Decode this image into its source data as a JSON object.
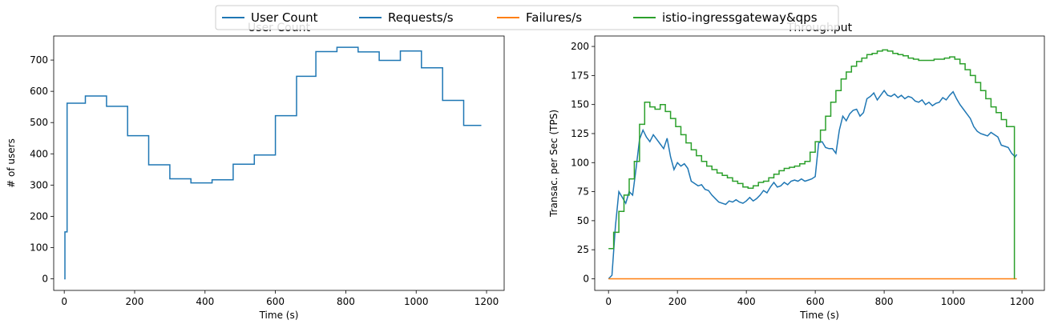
{
  "legend": {
    "entries": [
      {
        "label": "User Count",
        "color": "#1f77b4"
      },
      {
        "label": "Requests/s",
        "color": "#1f77b4"
      },
      {
        "label": "Failures/s",
        "color": "#ff7f0e"
      },
      {
        "label": "istio-ingressgateway&qps",
        "color": "#2ca02c"
      }
    ],
    "placement": "top-center"
  },
  "chart_data": [
    {
      "type": "line",
      "title": "User Count",
      "xlabel": "Time (s)",
      "ylabel": "# of users",
      "xlim": [
        -30,
        1250
      ],
      "ylim": [
        -37,
        777
      ],
      "xticks": [
        0,
        200,
        400,
        600,
        800,
        1000,
        1200
      ],
      "yticks": [
        0,
        100,
        200,
        300,
        400,
        500,
        600,
        700
      ],
      "grid": false,
      "series": [
        {
          "name": "User Count",
          "color": "#1f77b4",
          "step": true,
          "points": [
            [
              0,
              0
            ],
            [
              2,
              150
            ],
            [
              8,
              562
            ],
            [
              60,
              562
            ],
            [
              60,
              585
            ],
            [
              120,
              585
            ],
            [
              120,
              552
            ],
            [
              180,
              552
            ],
            [
              180,
              458
            ],
            [
              240,
              458
            ],
            [
              240,
              365
            ],
            [
              300,
              365
            ],
            [
              300,
              320
            ],
            [
              360,
              320
            ],
            [
              360,
              307
            ],
            [
              420,
              307
            ],
            [
              420,
              317
            ],
            [
              480,
              317
            ],
            [
              480,
              367
            ],
            [
              540,
              367
            ],
            [
              540,
              396
            ],
            [
              600,
              396
            ],
            [
              600,
              522
            ],
            [
              660,
              522
            ],
            [
              660,
              648
            ],
            [
              715,
              648
            ],
            [
              715,
              727
            ],
            [
              775,
              727
            ],
            [
              775,
              741
            ],
            [
              835,
              741
            ],
            [
              835,
              726
            ],
            [
              895,
              726
            ],
            [
              895,
              699
            ],
            [
              955,
              699
            ],
            [
              955,
              729
            ],
            [
              1015,
              729
            ],
            [
              1015,
              675
            ],
            [
              1075,
              675
            ],
            [
              1075,
              571
            ],
            [
              1135,
              571
            ],
            [
              1135,
              491
            ],
            [
              1185,
              491
            ]
          ]
        }
      ]
    },
    {
      "type": "line",
      "title": "Throughput",
      "xlabel": "Time (s)",
      "ylabel": "Transac. per Sec (TPS)",
      "xlim": [
        -40,
        1265
      ],
      "ylim": [
        -10,
        209
      ],
      "xticks": [
        0,
        200,
        400,
        600,
        800,
        1000,
        1200
      ],
      "yticks": [
        0,
        25,
        50,
        75,
        100,
        125,
        150,
        175,
        200
      ],
      "grid": false,
      "series": [
        {
          "name": "Requests/s",
          "color": "#1f77b4",
          "points": [
            [
              0,
              0
            ],
            [
              10,
              3
            ],
            [
              20,
              45
            ],
            [
              30,
              75
            ],
            [
              40,
              70
            ],
            [
              50,
              65
            ],
            [
              60,
              75
            ],
            [
              70,
              72
            ],
            [
              80,
              95
            ],
            [
              90,
              120
            ],
            [
              100,
              128
            ],
            [
              110,
              122
            ],
            [
              120,
              118
            ],
            [
              130,
              124
            ],
            [
              140,
              120
            ],
            [
              150,
              116
            ],
            [
              160,
              112
            ],
            [
              170,
              121
            ],
            [
              180,
              105
            ],
            [
              190,
              94
            ],
            [
              200,
              100
            ],
            [
              210,
              97
            ],
            [
              220,
              99
            ],
            [
              230,
              95
            ],
            [
              240,
              84
            ],
            [
              250,
              82
            ],
            [
              260,
              80
            ],
            [
              270,
              81
            ],
            [
              280,
              77
            ],
            [
              290,
              76
            ],
            [
              300,
              72
            ],
            [
              310,
              69
            ],
            [
              320,
              66
            ],
            [
              330,
              65
            ],
            [
              340,
              64
            ],
            [
              350,
              67
            ],
            [
              360,
              66
            ],
            [
              370,
              68
            ],
            [
              380,
              66
            ],
            [
              390,
              65
            ],
            [
              400,
              67
            ],
            [
              410,
              70
            ],
            [
              420,
              67
            ],
            [
              430,
              69
            ],
            [
              440,
              72
            ],
            [
              450,
              76
            ],
            [
              460,
              74
            ],
            [
              470,
              79
            ],
            [
              480,
              83
            ],
            [
              490,
              79
            ],
            [
              500,
              80
            ],
            [
              510,
              83
            ],
            [
              520,
              81
            ],
            [
              530,
              84
            ],
            [
              540,
              85
            ],
            [
              550,
              84
            ],
            [
              560,
              86
            ],
            [
              570,
              84
            ],
            [
              580,
              85
            ],
            [
              590,
              86
            ],
            [
              600,
              88
            ],
            [
              610,
              117
            ],
            [
              620,
              118
            ],
            [
              630,
              113
            ],
            [
              640,
              112
            ],
            [
              650,
              112
            ],
            [
              660,
              108
            ],
            [
              670,
              128
            ],
            [
              680,
              140
            ],
            [
              690,
              136
            ],
            [
              700,
              142
            ],
            [
              710,
              145
            ],
            [
              720,
              146
            ],
            [
              730,
              140
            ],
            [
              740,
              143
            ],
            [
              750,
              155
            ],
            [
              760,
              157
            ],
            [
              770,
              160
            ],
            [
              780,
              154
            ],
            [
              790,
              158
            ],
            [
              800,
              162
            ],
            [
              810,
              158
            ],
            [
              820,
              157
            ],
            [
              830,
              159
            ],
            [
              840,
              156
            ],
            [
              850,
              158
            ],
            [
              860,
              155
            ],
            [
              870,
              157
            ],
            [
              880,
              156
            ],
            [
              890,
              153
            ],
            [
              900,
              152
            ],
            [
              910,
              154
            ],
            [
              920,
              150
            ],
            [
              930,
              152
            ],
            [
              940,
              149
            ],
            [
              950,
              151
            ],
            [
              960,
              152
            ],
            [
              970,
              156
            ],
            [
              980,
              154
            ],
            [
              990,
              158
            ],
            [
              1000,
              161
            ],
            [
              1010,
              155
            ],
            [
              1020,
              150
            ],
            [
              1030,
              146
            ],
            [
              1040,
              142
            ],
            [
              1050,
              138
            ],
            [
              1060,
              131
            ],
            [
              1070,
              127
            ],
            [
              1080,
              125
            ],
            [
              1090,
              124
            ],
            [
              1100,
              123
            ],
            [
              1110,
              126
            ],
            [
              1120,
              124
            ],
            [
              1130,
              122
            ],
            [
              1140,
              115
            ],
            [
              1150,
              114
            ],
            [
              1160,
              113
            ],
            [
              1170,
              108
            ],
            [
              1180,
              105
            ],
            [
              1185,
              107
            ]
          ]
        },
        {
          "name": "Failures/s",
          "color": "#ff7f0e",
          "points": [
            [
              0,
              0
            ],
            [
              1185,
              0
            ]
          ]
        },
        {
          "name": "istio-ingressgateway&qps",
          "color": "#2ca02c",
          "step": true,
          "points": [
            [
              0,
              26
            ],
            [
              15,
              40
            ],
            [
              30,
              58
            ],
            [
              45,
              72
            ],
            [
              60,
              86
            ],
            [
              75,
              101
            ],
            [
              90,
              133
            ],
            [
              105,
              152
            ],
            [
              120,
              148
            ],
            [
              135,
              146
            ],
            [
              150,
              150
            ],
            [
              165,
              144
            ],
            [
              180,
              138
            ],
            [
              195,
              131
            ],
            [
              210,
              124
            ],
            [
              225,
              117
            ],
            [
              240,
              111
            ],
            [
              255,
              106
            ],
            [
              270,
              101
            ],
            [
              285,
              97
            ],
            [
              300,
              94
            ],
            [
              315,
              91
            ],
            [
              330,
              89
            ],
            [
              345,
              87
            ],
            [
              360,
              84
            ],
            [
              375,
              82
            ],
            [
              390,
              79
            ],
            [
              405,
              78
            ],
            [
              420,
              80
            ],
            [
              435,
              83
            ],
            [
              450,
              84
            ],
            [
              465,
              87
            ],
            [
              480,
              90
            ],
            [
              495,
              93
            ],
            [
              510,
              95
            ],
            [
              525,
              96
            ],
            [
              540,
              97
            ],
            [
              555,
              99
            ],
            [
              570,
              101
            ],
            [
              585,
              109
            ],
            [
              600,
              118
            ],
            [
              615,
              128
            ],
            [
              630,
              140
            ],
            [
              645,
              152
            ],
            [
              660,
              162
            ],
            [
              675,
              172
            ],
            [
              690,
              178
            ],
            [
              705,
              183
            ],
            [
              720,
              187
            ],
            [
              735,
              190
            ],
            [
              750,
              193
            ],
            [
              765,
              194
            ],
            [
              780,
              196
            ],
            [
              795,
              197
            ],
            [
              810,
              196
            ],
            [
              825,
              194
            ],
            [
              840,
              193
            ],
            [
              855,
              192
            ],
            [
              870,
              190
            ],
            [
              885,
              189
            ],
            [
              900,
              188
            ],
            [
              915,
              188
            ],
            [
              930,
              188
            ],
            [
              945,
              189
            ],
            [
              960,
              189
            ],
            [
              975,
              190
            ],
            [
              990,
              191
            ],
            [
              1005,
              189
            ],
            [
              1020,
              185
            ],
            [
              1035,
              180
            ],
            [
              1050,
              175
            ],
            [
              1065,
              169
            ],
            [
              1080,
              162
            ],
            [
              1095,
              155
            ],
            [
              1110,
              148
            ],
            [
              1125,
              143
            ],
            [
              1140,
              137
            ],
            [
              1155,
              131
            ],
            [
              1170,
              131
            ],
            [
              1178,
              0
            ]
          ]
        }
      ]
    }
  ]
}
